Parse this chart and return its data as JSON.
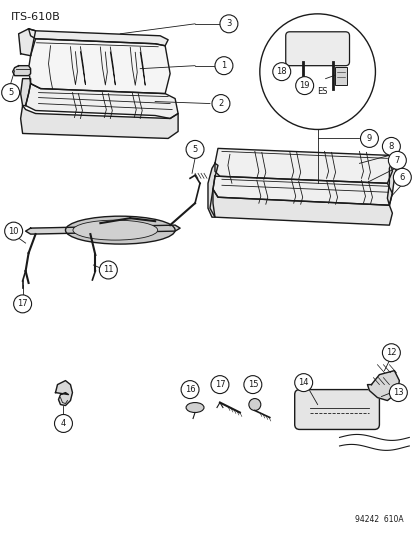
{
  "title": "ITS-610B",
  "part_number": "94242  610A",
  "bg_color": "#ffffff",
  "line_color": "#1a1a1a",
  "figsize": [
    4.14,
    5.33
  ],
  "dpi": 100
}
